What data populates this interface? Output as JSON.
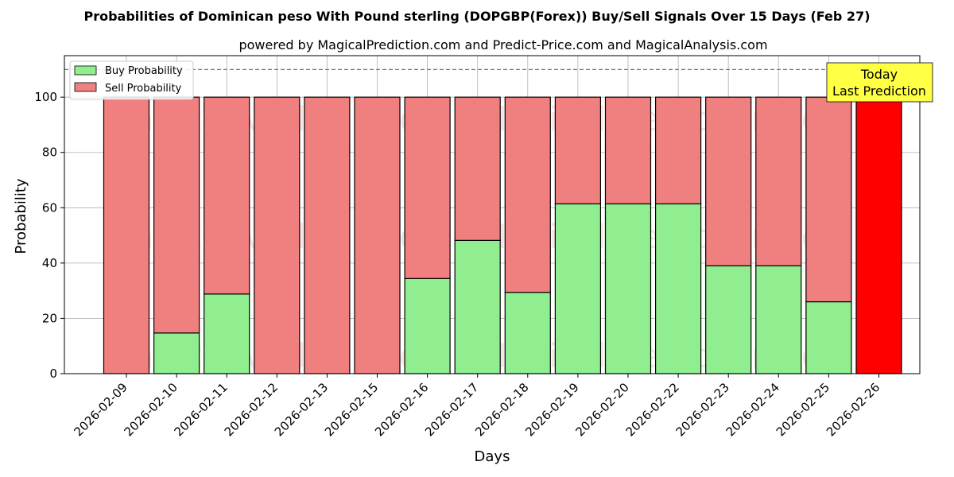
{
  "chart_data": {
    "type": "bar",
    "stacked": true,
    "title": "Probabilities of Dominican peso With Pound sterling (DOPGBP(Forex)) Buy/Sell Signals Over 15 Days (Feb 27)",
    "subtitle": "powered by MagicalPrediction.com and Predict-Price.com and MagicalAnalysis.com",
    "xlabel": "Days",
    "ylabel": "Probability",
    "ylim": [
      0,
      115
    ],
    "yticks": [
      0,
      20,
      40,
      60,
      80,
      100
    ],
    "reference_line": 110,
    "grid": true,
    "legend_position": "top-left",
    "categories": [
      "2026-02-09",
      "2026-02-10",
      "2026-02-11",
      "2026-02-12",
      "2026-02-13",
      "2026-02-15",
      "2026-02-16",
      "2026-02-17",
      "2026-02-18",
      "2026-02-19",
      "2026-02-20",
      "2026-02-22",
      "2026-02-23",
      "2026-02-24",
      "2026-02-25",
      "2026-02-26"
    ],
    "series": [
      {
        "name": "Buy Probability",
        "color": "#90ee90",
        "values": [
          0,
          14.7,
          28.8,
          0,
          0,
          0,
          34.4,
          48.2,
          29.4,
          61.4,
          61.4,
          61.4,
          39.0,
          39.0,
          26.0,
          0
        ]
      },
      {
        "name": "Sell Probability",
        "color": "#f08080",
        "values": [
          100,
          85.3,
          71.2,
          100,
          100,
          100,
          65.6,
          51.8,
          70.6,
          38.6,
          38.6,
          38.6,
          61.0,
          61.0,
          74.0,
          100
        ]
      }
    ],
    "highlight": {
      "index": 15,
      "color": "#ff0000"
    },
    "annotation": {
      "lines": [
        "Today",
        "Last Prediction"
      ],
      "color": "#ffff44"
    },
    "watermarks": [
      "MagicalAnalysis.com",
      "MagicalPrediction.com"
    ]
  }
}
